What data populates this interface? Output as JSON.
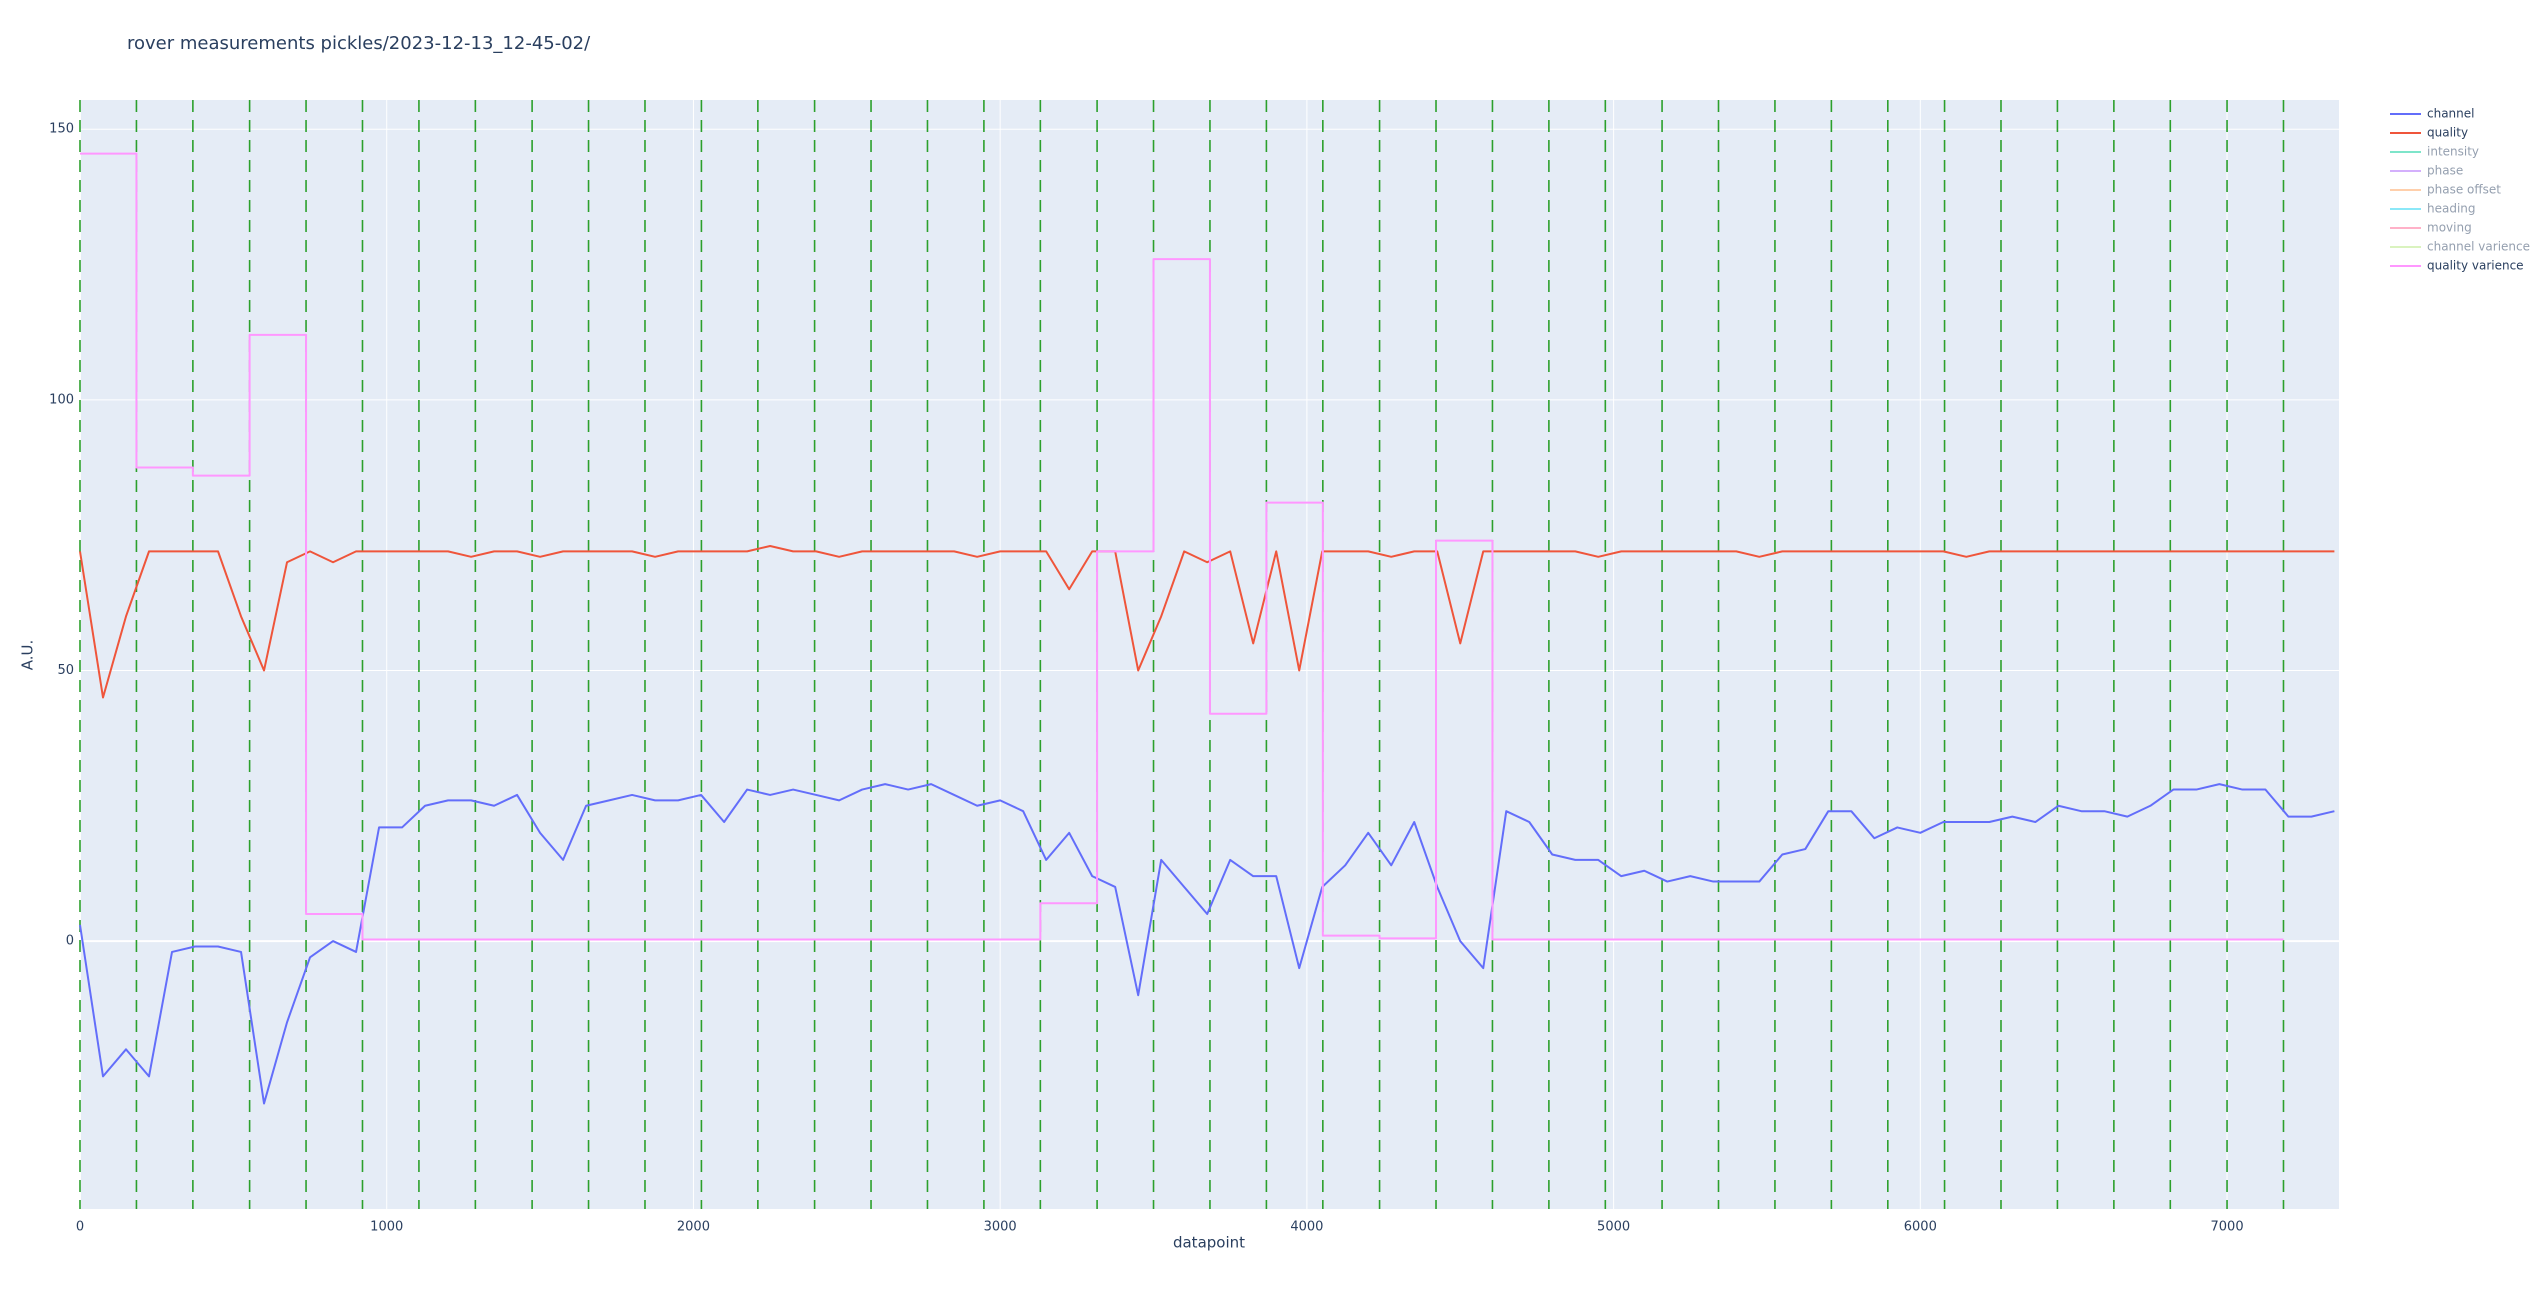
{
  "chart_data": {
    "type": "line",
    "title": "rover measurements pickles/2023-12-13_12-45-02/",
    "x_label": "datapoint",
    "y_label": "A.U.",
    "xlim": [
      0,
      7365
    ],
    "ylim": [
      -49.5,
      155.4
    ],
    "xticks": [
      0,
      1000,
      2000,
      3000,
      4000,
      5000,
      6000,
      7000
    ],
    "yticks": [
      0,
      50,
      100,
      150
    ],
    "grid": true,
    "legend": "right",
    "vline_color": "#2ca02c",
    "vlines": [
      0,
      184,
      368,
      553,
      737,
      921,
      1105,
      1289,
      1474,
      1658,
      1842,
      2026,
      2210,
      2395,
      2579,
      2763,
      2947,
      3131,
      3316,
      3500,
      3684,
      3868,
      4052,
      4237,
      4421,
      4605,
      4789,
      4973,
      5158,
      5342,
      5526,
      5710,
      5894,
      6079,
      6263,
      6447,
      6631,
      6815,
      7000,
      7184
    ],
    "x": [
      0,
      75,
      150,
      225,
      300,
      375,
      450,
      525,
      600,
      675,
      750,
      825,
      900,
      975,
      1050,
      1125,
      1200,
      1275,
      1350,
      1425,
      1500,
      1575,
      1650,
      1725,
      1800,
      1875,
      1950,
      2025,
      2100,
      2175,
      2250,
      2325,
      2400,
      2475,
      2550,
      2625,
      2700,
      2775,
      2850,
      2925,
      3000,
      3075,
      3150,
      3225,
      3300,
      3375,
      3450,
      3525,
      3600,
      3675,
      3750,
      3825,
      3900,
      3975,
      4050,
      4125,
      4200,
      4275,
      4350,
      4425,
      4500,
      4575,
      4650,
      4725,
      4800,
      4875,
      4950,
      5025,
      5100,
      5175,
      5250,
      5325,
      5400,
      5475,
      5550,
      5625,
      5700,
      5775,
      5850,
      5925,
      6000,
      6075,
      6150,
      6225,
      6300,
      6375,
      6450,
      6525,
      6600,
      6675,
      6750,
      6825,
      6900,
      6975,
      7050,
      7125,
      7200,
      7275,
      7350
    ],
    "series": [
      {
        "name": "channel",
        "color": "#636efa",
        "values": [
          3,
          -25,
          -20,
          -25,
          -2,
          -1,
          -1,
          -2,
          -30,
          -15,
          -3,
          0,
          -2,
          21,
          21,
          25,
          26,
          26,
          25,
          27,
          20,
          15,
          25,
          26,
          27,
          26,
          26,
          27,
          22,
          28,
          27,
          28,
          27,
          26,
          28,
          29,
          28,
          29,
          27,
          25,
          26,
          24,
          15,
          20,
          12,
          10,
          -10,
          15,
          10,
          5,
          15,
          12,
          12,
          -5,
          10,
          14,
          20,
          14,
          22,
          10,
          0,
          -5,
          24,
          22,
          16,
          15,
          15,
          12,
          13,
          11,
          12,
          11,
          11,
          11,
          16,
          17,
          24,
          24,
          19,
          21,
          20,
          22,
          22,
          22,
          23,
          22,
          25,
          24,
          24,
          23,
          25,
          28,
          28,
          29,
          28,
          28,
          23,
          23,
          24
        ]
      },
      {
        "name": "quality",
        "color": "#EF553B",
        "values": [
          72,
          45,
          60,
          72,
          72,
          72,
          72,
          60,
          50,
          70,
          72,
          70,
          72,
          72,
          72,
          72,
          72,
          71,
          72,
          72,
          71,
          72,
          72,
          72,
          72,
          71,
          72,
          72,
          72,
          72,
          73,
          72,
          72,
          71,
          72,
          72,
          72,
          72,
          72,
          71,
          72,
          72,
          72,
          65,
          72,
          72,
          50,
          60,
          72,
          70,
          72,
          55,
          72,
          50,
          72,
          72,
          72,
          71,
          72,
          72,
          55,
          72,
          72,
          72,
          72,
          72,
          71,
          72,
          72,
          72,
          72,
          72,
          72,
          71,
          72,
          72,
          72,
          72,
          72,
          72,
          72,
          72,
          71,
          72,
          72,
          72,
          72,
          72,
          72,
          72,
          72,
          72,
          72,
          72,
          72,
          72,
          72,
          72,
          72
        ]
      },
      {
        "name": "intensity",
        "color": "#00cc96",
        "visible": "legendonly"
      },
      {
        "name": "phase",
        "color": "#ab63fa",
        "visible": "legendonly"
      },
      {
        "name": "phase offset",
        "color": "#FFA15A",
        "visible": "legendonly"
      },
      {
        "name": "heading",
        "color": "#19d3f3",
        "visible": "legendonly"
      },
      {
        "name": "moving",
        "color": "#FF6692",
        "visible": "legendonly"
      },
      {
        "name": "channel varience",
        "color": "#B6E880",
        "visible": "legendonly"
      },
      {
        "name": "quality varience",
        "color": "#FF97FF",
        "shape": "hv",
        "x": [
          0,
          184,
          368,
          553,
          737,
          921,
          3131,
          3316,
          3500,
          3684,
          3868,
          4052,
          4237,
          4421,
          4605,
          7184
        ],
        "values": [
          145.5,
          87.5,
          86,
          112,
          5,
          0.3,
          7,
          72,
          126,
          42,
          81,
          1,
          0.5,
          74,
          0.3,
          0.3
        ]
      }
    ]
  }
}
